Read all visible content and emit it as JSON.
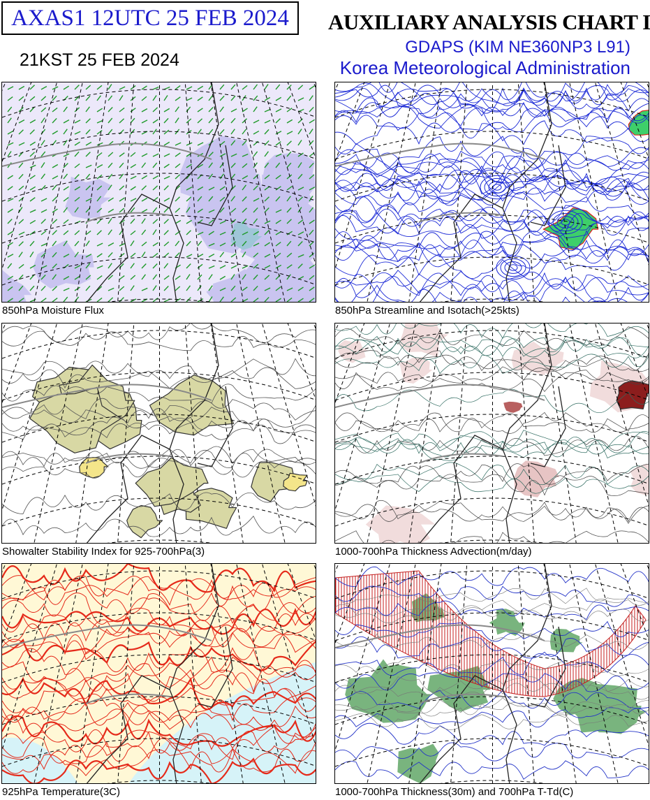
{
  "header": {
    "product": "AXAS1  12UTC 25 FEB 2024",
    "issue_time_kst": "21KST 25 FEB 2024",
    "title": "AUXILIARY ANALYSIS CHART  I",
    "model": "GDAPS (KIM NE360NP3 L91)",
    "agency": "Korea Meteorological Administration"
  },
  "panels": [
    {
      "caption": "850hPa Moisture Flux"
    },
    {
      "caption": "850hPa Streamline and Isotach(>25kts)"
    },
    {
      "caption": "Showalter Stability Index for 925-700hPa(3)"
    },
    {
      "caption": "1000-700hPa Thickness Advection(m/day)"
    },
    {
      "caption": "925hPa Temperature(3C)"
    },
    {
      "caption": "1000-700hPa Thickness(30m) and 700hPa T-Td(C)"
    }
  ]
}
